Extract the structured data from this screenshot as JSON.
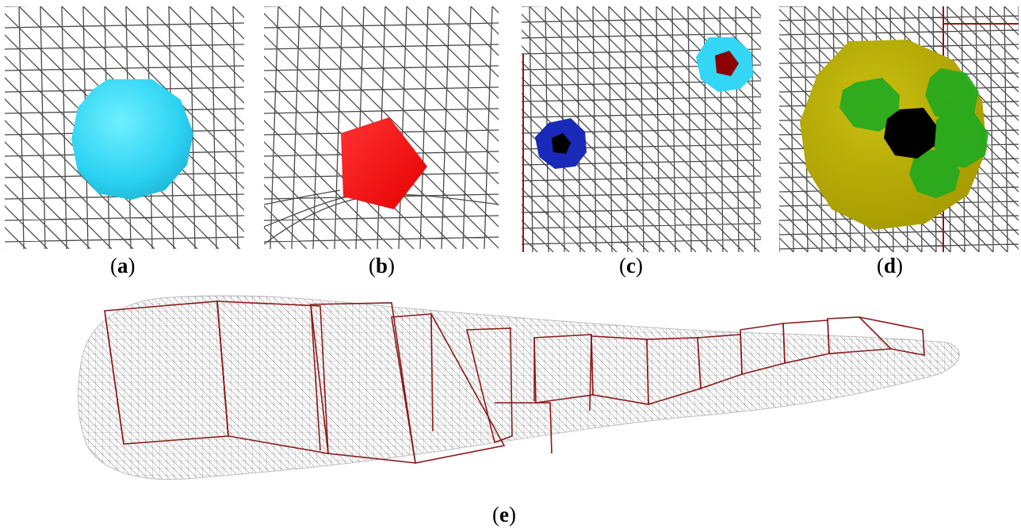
{
  "figure": {
    "captions": {
      "a": "a",
      "b": "b",
      "c": "c",
      "d": "d",
      "e": "e"
    },
    "colors": {
      "mesh": "#4a4a4a",
      "box_edge": "#8b1a1a",
      "cyan_sphere": "#33d6f5",
      "red_pentagon": "#ff1a1a",
      "blue_sphere": "#1020b0",
      "dark_red_pentagon": "#8b0000",
      "yellow_sphere": "#b3a800",
      "green_sphere": "#1faa1f",
      "black_core": "#000000"
    },
    "panels": [
      {
        "id": "a",
        "content": "cyan-sphere-on-mesh"
      },
      {
        "id": "b",
        "content": "red-pentagon-on-mesh"
      },
      {
        "id": "c",
        "content": "blue-and-cyan-spheres-on-mesh"
      },
      {
        "id": "d",
        "content": "yellow-sphere-with-green-clusters"
      },
      {
        "id": "e",
        "content": "elongated-mesh-with-bounding-boxes"
      }
    ]
  }
}
